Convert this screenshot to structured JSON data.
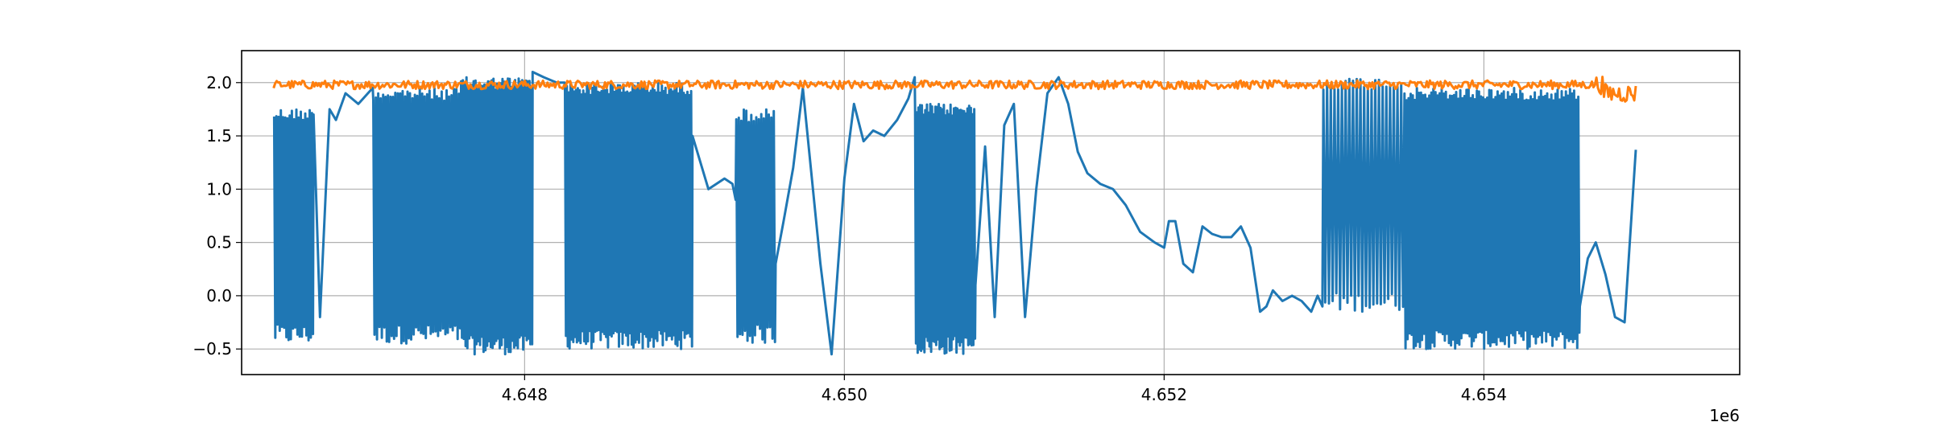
{
  "chart_data": {
    "type": "line",
    "title": "",
    "xlabel": "",
    "ylabel": "",
    "x_offset_label": "1e6",
    "xlim": [
      4646230,
      4655600
    ],
    "ylim": [
      -0.74,
      2.3
    ],
    "x_ticks": [
      4648000,
      4650000,
      4652000,
      4654000
    ],
    "x_tick_labels": [
      "4.648",
      "4.650",
      "4.652",
      "4.654"
    ],
    "y_ticks": [
      -0.5,
      0.0,
      0.5,
      1.0,
      1.5,
      2.0
    ],
    "y_tick_labels": [
      "−0.5",
      "0.0",
      "0.5",
      "1.0",
      "1.5",
      "2.0"
    ],
    "grid": true,
    "legend": "none",
    "series": [
      {
        "color": "#1f77b4",
        "segments": [
          {
            "kind": "osc",
            "x": [
              4646430,
              4646680
            ],
            "low": -0.45,
            "high": 1.76,
            "n": 18
          },
          {
            "kind": "points",
            "x": [
              4646680,
              4646720,
              4646780,
              4646820,
              4646880,
              4646960,
              4647050
            ],
            "y": [
              1.7,
              -0.2,
              1.75,
              1.65,
              1.9,
              1.8,
              1.95
            ]
          },
          {
            "kind": "osc",
            "x": [
              4647050,
              4647600
            ],
            "low": -0.45,
            "high": 1.95,
            "n": 36
          },
          {
            "kind": "osc",
            "x": [
              4647600,
              4648050
            ],
            "low": -0.55,
            "high": 2.05,
            "n": 40
          },
          {
            "kind": "points",
            "x": [
              4648050,
              4648120,
              4648200,
              4648250
            ],
            "y": [
              2.1,
              2.05,
              2.0,
              2.0
            ]
          },
          {
            "kind": "osc",
            "x": [
              4648250,
              4649050
            ],
            "low": -0.5,
            "high": 2.0,
            "n": 70
          },
          {
            "kind": "points",
            "x": [
              4649050,
              4649150,
              4649250,
              4649300,
              4649320
            ],
            "y": [
              1.5,
              1.0,
              1.1,
              1.05,
              0.9
            ]
          },
          {
            "kind": "osc",
            "x": [
              4649320,
              4649570
            ],
            "low": -0.45,
            "high": 1.75,
            "n": 16
          },
          {
            "kind": "points",
            "x": [
              4649570,
              4649620,
              4649680,
              4649740,
              4649790,
              4649850,
              4649920,
              4650000,
              4650060,
              4650120,
              4650180,
              4650250,
              4650330,
              4650400,
              4650440
            ],
            "y": [
              0.3,
              0.7,
              1.2,
              1.95,
              1.2,
              0.3,
              -0.55,
              1.1,
              1.8,
              1.45,
              1.55,
              1.5,
              1.65,
              1.85,
              2.05
            ]
          },
          {
            "kind": "osc",
            "x": [
              4650440,
              4650820
            ],
            "low": -0.55,
            "high": 1.8,
            "n": 36
          },
          {
            "kind": "points",
            "x": [
              4650820,
              4650880,
              4650940,
              4651000,
              4651060,
              4651130,
              4651200,
              4651270,
              4651340,
              4651400,
              4651460,
              4651520,
              4651600,
              4651680,
              4651760,
              4651850,
              4651940,
              4652000,
              4652030,
              4652070,
              4652120,
              4652180,
              4652240,
              4652300,
              4652360,
              4652420,
              4652480,
              4652540,
              4652600,
              4652640,
              4652680,
              4652740,
              4652800,
              4652860,
              4652920,
              4652960,
              4652990
            ],
            "y": [
              0.1,
              1.4,
              -0.2,
              1.6,
              1.8,
              -0.2,
              1.0,
              1.9,
              2.05,
              1.8,
              1.35,
              1.15,
              1.05,
              1.0,
              0.85,
              0.6,
              0.5,
              0.45,
              0.7,
              0.7,
              0.3,
              0.22,
              0.65,
              0.58,
              0.55,
              0.55,
              0.65,
              0.45,
              -0.15,
              -0.1,
              0.05,
              -0.05,
              0.0,
              -0.05,
              -0.15,
              0.0,
              -0.1
            ]
          },
          {
            "kind": "osc",
            "x": [
              4652990,
              4653500
            ],
            "low": -0.15,
            "high": 2.05,
            "n": 22
          },
          {
            "kind": "osc",
            "x": [
              4653500,
              4654600
            ],
            "low": -0.5,
            "high": 1.95,
            "n": 85
          },
          {
            "kind": "points",
            "x": [
              4654600,
              4654650,
              4654700,
              4654760,
              4654820,
              4654880,
              4654950
            ],
            "y": [
              -0.1,
              0.35,
              0.5,
              0.2,
              -0.2,
              -0.25,
              1.37
            ]
          }
        ]
      },
      {
        "color": "#ff7f0e",
        "segments": [
          {
            "kind": "noise",
            "x": [
              4646430,
              4654950
            ],
            "mean": 1.98,
            "amp": 0.04,
            "n": 900
          }
        ]
      }
    ]
  }
}
